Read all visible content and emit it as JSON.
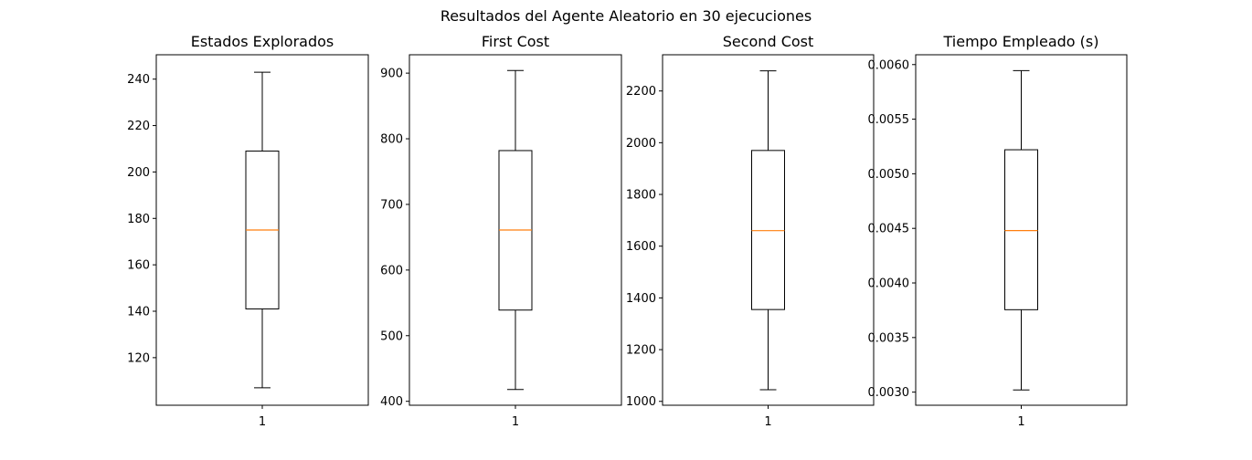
{
  "figure": {
    "title": "Resultados del Agente Aleatorio en 30 ejecuciones"
  },
  "colors": {
    "box": "#000000",
    "median": "#ff7f0e",
    "background": "#ffffff"
  },
  "chart_data": [
    {
      "type": "box",
      "title": "Estados Explorados",
      "xlabel": "",
      "ylabel": "",
      "categories": [
        "1"
      ],
      "ylim": [
        99.5,
        250.5
      ],
      "yticks": [
        120,
        140,
        160,
        180,
        200,
        220,
        240
      ],
      "ytick_labels": [
        "120",
        "140",
        "160",
        "180",
        "200",
        "220",
        "240"
      ],
      "box": {
        "whisker_low": 107,
        "q1": 141,
        "median": 175,
        "q3": 209,
        "whisker_high": 243
      }
    },
    {
      "type": "box",
      "title": "First Cost",
      "xlabel": "",
      "ylabel": "",
      "categories": [
        "1"
      ],
      "ylim": [
        394,
        928
      ],
      "yticks": [
        400,
        500,
        600,
        700,
        800,
        900
      ],
      "ytick_labels": [
        "400",
        "500",
        "600",
        "700",
        "800",
        "900"
      ],
      "box": {
        "whisker_low": 418,
        "q1": 539,
        "median": 661,
        "q3": 782,
        "whisker_high": 904
      }
    },
    {
      "type": "box",
      "title": "Second Cost",
      "xlabel": "",
      "ylabel": "",
      "categories": [
        "1"
      ],
      "ylim": [
        985,
        2340
      ],
      "yticks": [
        1000,
        1200,
        1400,
        1600,
        1800,
        2000,
        2200
      ],
      "ytick_labels": [
        "1000",
        "1200",
        "1400",
        "1600",
        "1800",
        "2000",
        "2200"
      ],
      "box": {
        "whisker_low": 1045,
        "q1": 1355,
        "median": 1660,
        "q3": 1970,
        "whisker_high": 2278
      }
    },
    {
      "type": "box",
      "title": "Tiempo Empleado (s)",
      "xlabel": "",
      "ylabel": "",
      "categories": [
        "1"
      ],
      "ylim": [
        0.00288,
        0.00609
      ],
      "yticks": [
        0.003,
        0.0035,
        0.004,
        0.0045,
        0.005,
        0.0055,
        0.006
      ],
      "ytick_labels": [
        "0.0030",
        "0.0035",
        "0.0040",
        "0.0045",
        "0.0050",
        "0.0055",
        "0.0060"
      ],
      "box": {
        "whisker_low": 0.00302,
        "q1": 0.003755,
        "median": 0.00448,
        "q3": 0.00522,
        "whisker_high": 0.005945
      }
    }
  ]
}
